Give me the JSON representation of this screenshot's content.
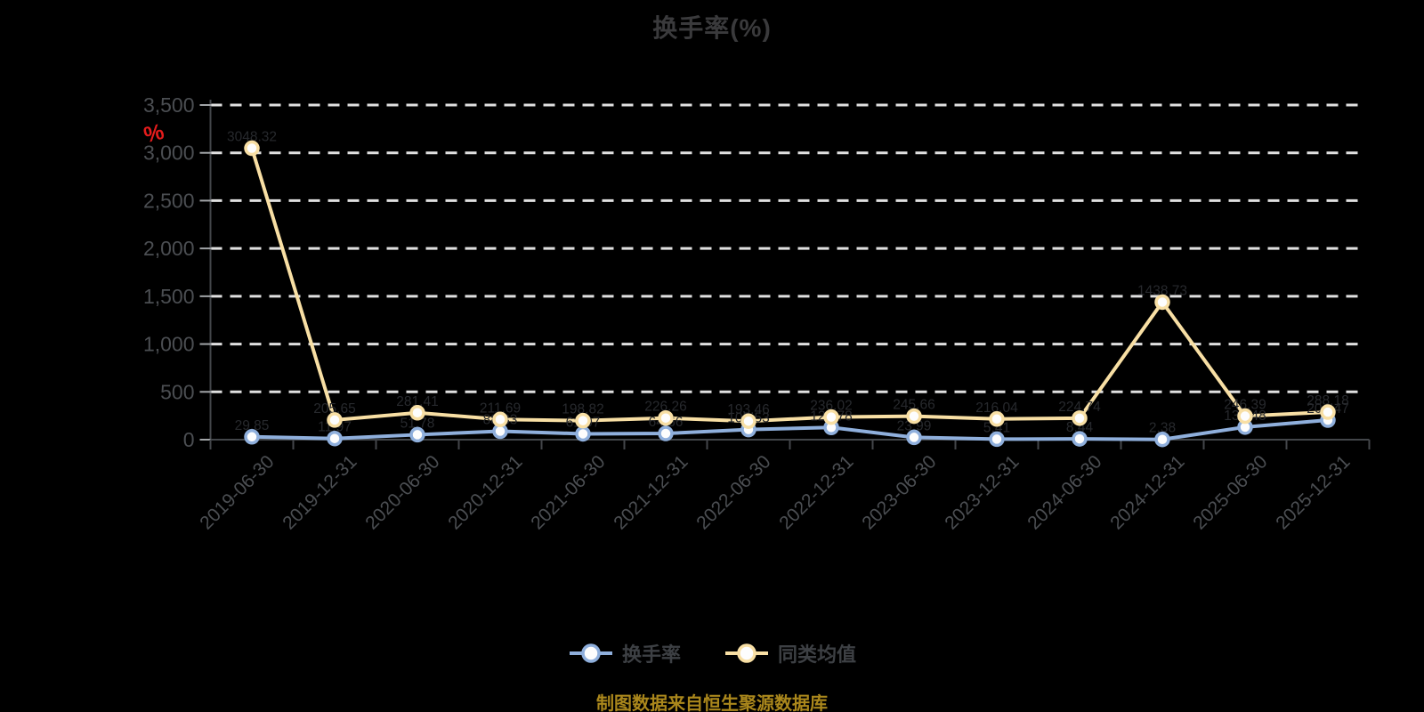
{
  "title": "换手率(%)",
  "y_axis": {
    "unit": "%",
    "tick_values": [
      0,
      500,
      1000,
      1500,
      2000,
      2500,
      3000,
      3500
    ]
  },
  "x_axis": {
    "categories": [
      "2019-06-30",
      "2019-12-31",
      "2020-06-30",
      "2020-12-31",
      "2021-06-30",
      "2021-12-31",
      "2022-06-30",
      "2022-12-31",
      "2023-06-30",
      "2023-12-31",
      "2024-06-30",
      "2024-12-31",
      "2025-06-30",
      "2025-12-31"
    ]
  },
  "legend": {
    "items": [
      {
        "label": "换手率",
        "color": "#8FAFDC"
      },
      {
        "label": "同类均值",
        "color": "#F8DFA4"
      }
    ]
  },
  "footer": {
    "source_note": "制图数据来自恒生聚源数据库"
  },
  "colors": {
    "background": "#000000",
    "title_text": "#3A3A3C",
    "axis_text": "#4B4E52",
    "axis_line": "#43464A",
    "tick_mark": "#A2A5A8",
    "gridline": "#E0E0E0",
    "unit_label": "#E41C1C",
    "point_label": "#27292D",
    "marker_fill": "#FDFDFD",
    "legend_text": "#3D4044",
    "footer_text": "#AA871C"
  },
  "chart_data": {
    "type": "line",
    "title": "换手率(%)",
    "categories": [
      "2019-06-30",
      "2019-12-31",
      "2020-06-30",
      "2020-12-31",
      "2021-06-30",
      "2021-12-31",
      "2022-06-30",
      "2022-12-31",
      "2023-06-30",
      "2023-12-31",
      "2024-06-30",
      "2024-12-31",
      "2025-06-30",
      "2025-12-31"
    ],
    "series": [
      {
        "name": "换手率",
        "color": "#8FAFDC",
        "values": [
          29.85,
          11.97,
          51.78,
          88.33,
          61.07,
          64.66,
          105.53,
          127.78,
          23.99,
          5.41,
          8.44,
          2.38,
          131.48,
          204.47
        ]
      },
      {
        "name": "同类均值",
        "color": "#F8DFA4",
        "values": [
          3048.32,
          205.65,
          281.41,
          211.69,
          198.82,
          226.26,
          193.46,
          236.02,
          245.66,
          216.04,
          224.74,
          1438.73,
          246.39,
          288.18
        ]
      }
    ],
    "ylabel": "%",
    "ylim": [
      0,
      3500
    ],
    "ytick_step": 500,
    "grid": "horizontal-dashed",
    "legend_position": "bottom",
    "point_labels_visible": true
  }
}
